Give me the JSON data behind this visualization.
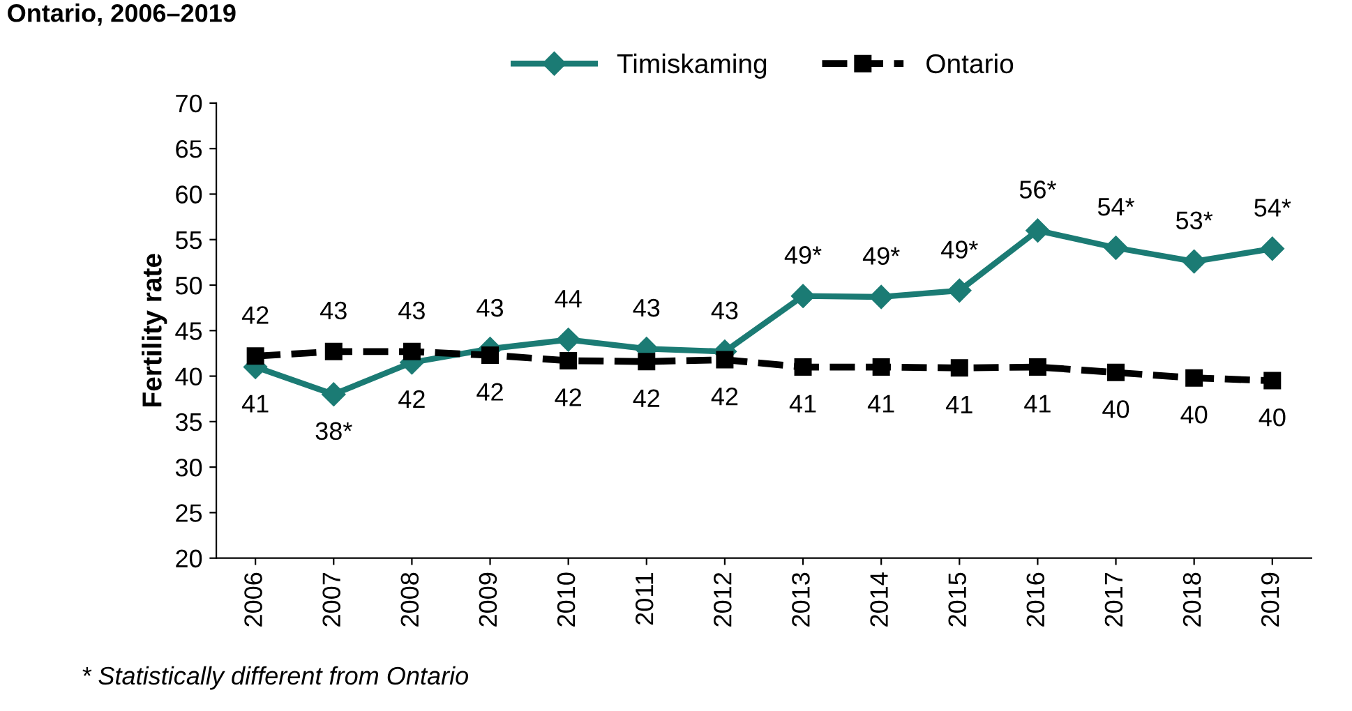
{
  "chart_data": {
    "type": "line",
    "title": "Ontario, 2006–2019",
    "ylabel": "Fertility rate",
    "categories": [
      "2006",
      "2007",
      "2008",
      "2009",
      "2010",
      "2011",
      "2012",
      "2013",
      "2014",
      "2015",
      "2016",
      "2017",
      "2018",
      "2019"
    ],
    "series": [
      {
        "name": "Timiskaming",
        "color": "#1b7b74",
        "marker": "diamond",
        "line_style": "solid",
        "values": [
          41,
          38,
          41.5,
          43,
          44,
          43,
          42.7,
          48.8,
          48.7,
          49.4,
          56,
          54.1,
          52.6,
          54
        ],
        "value_labels": [
          "41",
          "38*",
          "42",
          "43",
          "44",
          "43",
          "43",
          "49*",
          "49*",
          "49*",
          "56*",
          "54*",
          "53*",
          "54*"
        ]
      },
      {
        "name": "Ontario",
        "color": "#000000",
        "marker": "square",
        "line_style": "dashed",
        "values": [
          42.2,
          42.7,
          42.7,
          42.3,
          41.7,
          41.6,
          41.8,
          41.0,
          41.0,
          40.9,
          41.0,
          40.4,
          39.8,
          39.5
        ],
        "value_labels": [
          "42",
          "43",
          "43",
          "42",
          "42",
          "42",
          "42",
          "41",
          "41",
          "41",
          "41",
          "40",
          "40",
          "40"
        ]
      }
    ],
    "ylim": [
      20,
      70
    ],
    "yticks": [
      20,
      25,
      30,
      35,
      40,
      45,
      50,
      55,
      60,
      65,
      70
    ],
    "grid": false,
    "legend": "top",
    "annotations": [
      "* Statistically different from Ontario"
    ]
  }
}
